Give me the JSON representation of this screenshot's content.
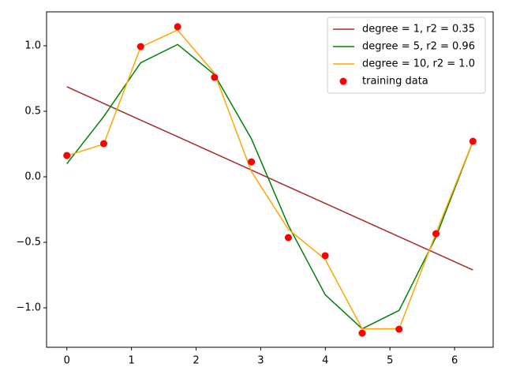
{
  "chart_data": {
    "type": "line",
    "x": [
      0,
      0.571,
      1.142,
      1.714,
      2.285,
      2.856,
      3.427,
      3.998,
      4.57,
      5.141,
      5.712,
      6.283
    ],
    "series": [
      {
        "name": "degree = 1, r2 = 0.35",
        "color": "#a52a2a",
        "type": "line",
        "values": [
          0.687,
          0.56,
          0.433,
          0.306,
          0.179,
          0.052,
          -0.076,
          -0.203,
          -0.33,
          -0.457,
          -0.584,
          -0.711
        ]
      },
      {
        "name": "degree = 5, r2 = 0.96",
        "color": "#008000",
        "type": "line",
        "values": [
          0.1,
          0.46,
          0.87,
          1.01,
          0.78,
          0.29,
          -0.37,
          -0.9,
          -1.16,
          -1.02,
          -0.46,
          0.27
        ]
      },
      {
        "name": "degree = 10, r2 = 1.0",
        "color": "#ffa500",
        "type": "line",
        "values": [
          0.16,
          0.25,
          0.99,
          1.12,
          0.79,
          0.04,
          -0.4,
          -0.63,
          -1.16,
          -1.16,
          -0.43,
          0.27
        ]
      },
      {
        "name": "training data",
        "color": "#ff0000",
        "type": "scatter",
        "values": [
          0.163,
          0.253,
          0.994,
          1.145,
          0.759,
          0.114,
          -0.464,
          -0.602,
          -1.193,
          -1.163,
          -0.434,
          0.271
        ]
      }
    ],
    "xlim": [
      -0.314,
      6.597
    ],
    "ylim": [
      -1.301,
      1.259
    ],
    "xticks": [
      0,
      1,
      2,
      3,
      4,
      5,
      6
    ],
    "yticks": [
      {
        "value": -1.0,
        "label": "−1.0"
      },
      {
        "value": -0.5,
        "label": "−0.5"
      },
      {
        "value": 0.0,
        "label": "0.0"
      },
      {
        "value": 0.5,
        "label": "0.5"
      },
      {
        "value": 1.0,
        "label": "1.0"
      }
    ],
    "legend": "upper right"
  }
}
